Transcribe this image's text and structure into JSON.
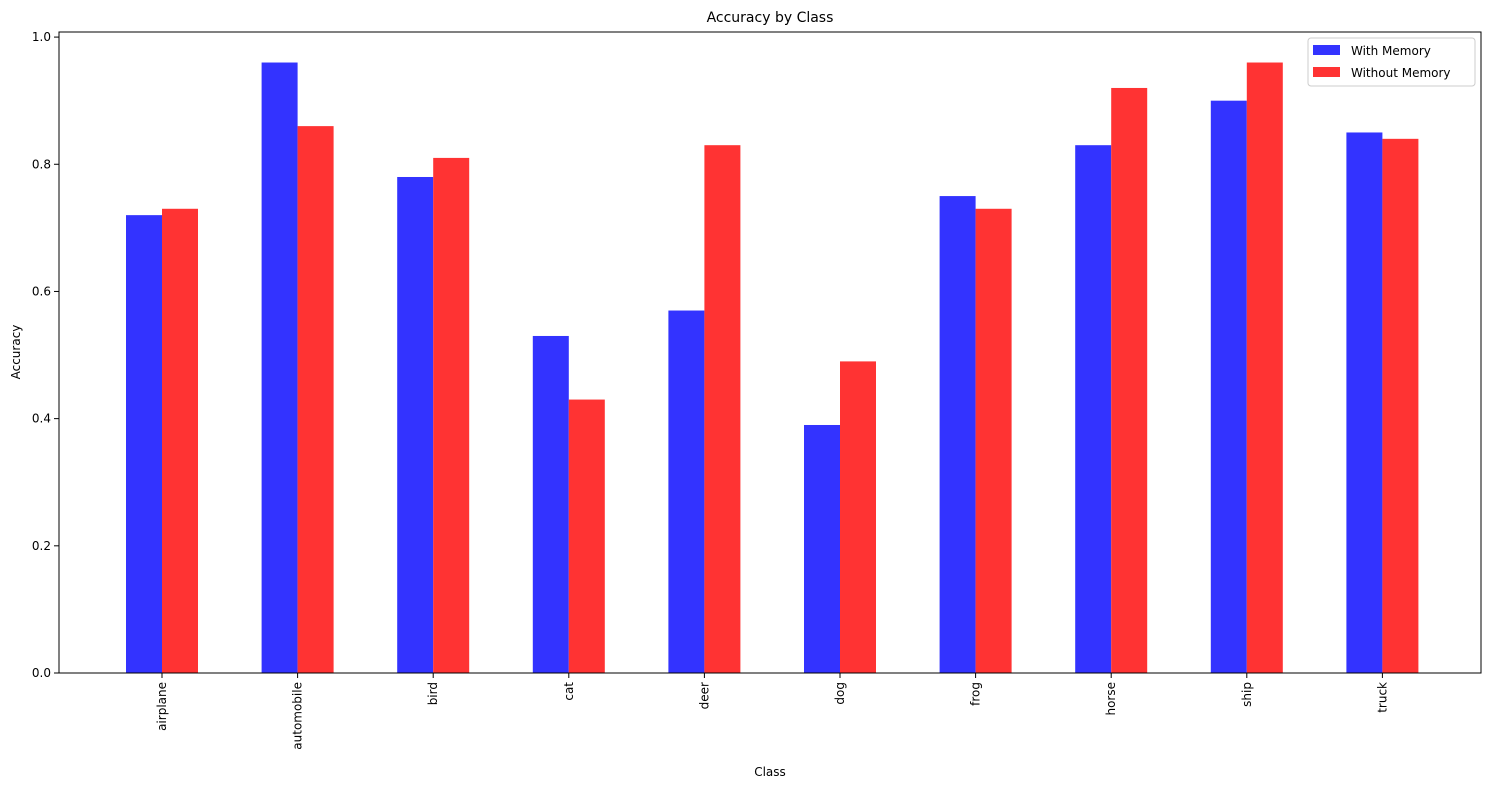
{
  "chart_data": {
    "type": "bar",
    "title": "Accuracy by Class",
    "xlabel": "Class",
    "ylabel": "Accuracy",
    "categories": [
      "airplane",
      "automobile",
      "bird",
      "cat",
      "deer",
      "dog",
      "frog",
      "horse",
      "ship",
      "truck"
    ],
    "series": [
      {
        "name": "With Memory",
        "color": "#3333ff",
        "values": [
          0.72,
          0.96,
          0.78,
          0.53,
          0.57,
          0.39,
          0.75,
          0.83,
          0.9,
          0.85
        ]
      },
      {
        "name": "Without Memory",
        "color": "#ff3333",
        "values": [
          0.73,
          0.86,
          0.81,
          0.43,
          0.83,
          0.49,
          0.73,
          0.92,
          0.96,
          0.84
        ]
      }
    ],
    "ylim": [
      0,
      1.008
    ],
    "yticks": [
      "0.0",
      "0.2",
      "0.4",
      "0.6",
      "0.8",
      "1.0"
    ],
    "grid": false,
    "legend": "top-right"
  }
}
